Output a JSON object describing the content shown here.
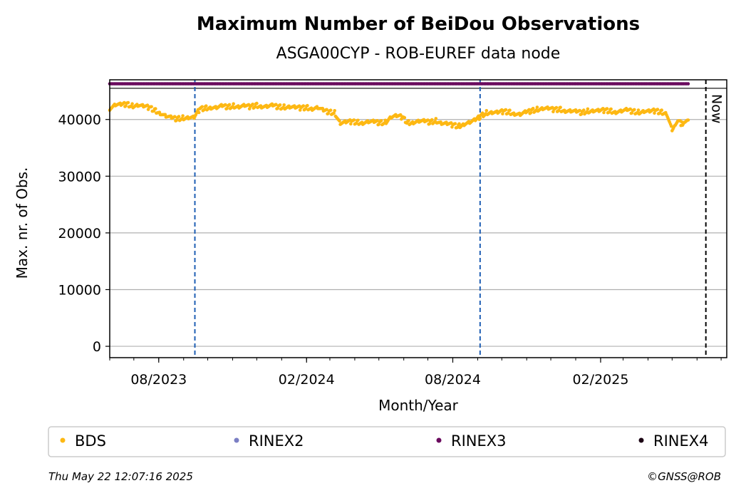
{
  "chart_data": {
    "type": "scatter",
    "title": "Maximum Number of BeiDou Observations",
    "subtitle": "ASGA00CYP - ROB-EUREF data node",
    "xlabel": "Month/Year",
    "ylabel": "Max. nr. of Obs.",
    "x_range": [
      "2023-06-01",
      "2025-07-08"
    ],
    "ylim": [
      -2000,
      47000
    ],
    "x_ticks": [
      {
        "date": "2023-08-01",
        "label": "08/2023"
      },
      {
        "date": "2024-02-01",
        "label": "02/2024"
      },
      {
        "date": "2024-08-01",
        "label": "08/2024"
      },
      {
        "date": "2025-02-01",
        "label": "02/2025"
      }
    ],
    "y_ticks": [
      {
        "value": 0,
        "label": "0"
      },
      {
        "value": 10000,
        "label": "10000"
      },
      {
        "value": 20000,
        "label": "20000"
      },
      {
        "value": 30000,
        "label": "30000"
      },
      {
        "value": 40000,
        "label": "40000"
      }
    ],
    "grid": "horizontal",
    "vlines": [
      {
        "date": "2023-09-15",
        "color": "#1f5fb4",
        "style": "dashed"
      },
      {
        "date": "2024-09-04",
        "color": "#1f5fb4",
        "style": "dashed"
      },
      {
        "date": "2025-06-12",
        "color": "#000000",
        "style": "dashed",
        "label": "Now"
      }
    ],
    "band_separator": 45500,
    "series": [
      {
        "name": "BDS",
        "color": "#fdb813",
        "points": [
          [
            "2023-06-01",
            42000
          ],
          [
            "2023-06-08",
            42600
          ],
          [
            "2023-06-15",
            42500
          ],
          [
            "2023-06-22",
            42700
          ],
          [
            "2023-06-29",
            42400
          ],
          [
            "2023-07-06",
            42600
          ],
          [
            "2023-07-13",
            42300
          ],
          [
            "2023-07-20",
            42100
          ],
          [
            "2023-07-27",
            41600
          ],
          [
            "2023-08-03",
            41200
          ],
          [
            "2023-08-10",
            40600
          ],
          [
            "2023-08-17",
            40200
          ],
          [
            "2023-08-24",
            40100
          ],
          [
            "2023-08-31",
            40300
          ],
          [
            "2023-09-07",
            40400
          ],
          [
            "2023-09-14",
            40300
          ],
          [
            "2023-09-21",
            41800
          ],
          [
            "2023-09-28",
            42000
          ],
          [
            "2023-10-05",
            42200
          ],
          [
            "2023-10-12",
            42100
          ],
          [
            "2023-10-19",
            42300
          ],
          [
            "2023-10-26",
            42200
          ],
          [
            "2023-11-02",
            42400
          ],
          [
            "2023-11-09",
            42300
          ],
          [
            "2023-11-16",
            42400
          ],
          [
            "2023-11-23",
            42200
          ],
          [
            "2023-11-30",
            42500
          ],
          [
            "2023-12-07",
            42400
          ],
          [
            "2023-12-14",
            42300
          ],
          [
            "2023-12-21",
            42400
          ],
          [
            "2023-12-28",
            42200
          ],
          [
            "2024-01-04",
            42200
          ],
          [
            "2024-01-11",
            42300
          ],
          [
            "2024-01-18",
            42100
          ],
          [
            "2024-01-25",
            42000
          ],
          [
            "2024-02-01",
            42100
          ],
          [
            "2024-02-08",
            42000
          ],
          [
            "2024-02-15",
            42100
          ],
          [
            "2024-02-22",
            41500
          ],
          [
            "2024-02-29",
            41300
          ],
          [
            "2024-03-07",
            41200
          ],
          [
            "2024-03-14",
            39400
          ],
          [
            "2024-03-21",
            39500
          ],
          [
            "2024-03-28",
            39600
          ],
          [
            "2024-04-04",
            39500
          ],
          [
            "2024-04-11",
            39500
          ],
          [
            "2024-04-18",
            39600
          ],
          [
            "2024-04-25",
            39500
          ],
          [
            "2024-05-02",
            39400
          ],
          [
            "2024-05-09",
            39500
          ],
          [
            "2024-05-16",
            40500
          ],
          [
            "2024-05-23",
            40600
          ],
          [
            "2024-05-30",
            40400
          ],
          [
            "2024-06-06",
            39400
          ],
          [
            "2024-06-13",
            39600
          ],
          [
            "2024-06-20",
            39700
          ],
          [
            "2024-06-27",
            39600
          ],
          [
            "2024-07-04",
            39500
          ],
          [
            "2024-07-11",
            39800
          ],
          [
            "2024-07-18",
            39400
          ],
          [
            "2024-07-25",
            39200
          ],
          [
            "2024-08-01",
            39000
          ],
          [
            "2024-08-08",
            38800
          ],
          [
            "2024-08-15",
            39300
          ],
          [
            "2024-08-22",
            39500
          ],
          [
            "2024-08-29",
            39800
          ],
          [
            "2024-09-05",
            40600
          ],
          [
            "2024-09-12",
            41200
          ],
          [
            "2024-09-19",
            41300
          ],
          [
            "2024-09-26",
            41200
          ],
          [
            "2024-10-03",
            41400
          ],
          [
            "2024-10-10",
            41300
          ],
          [
            "2024-10-17",
            41100
          ],
          [
            "2024-10-24",
            40900
          ],
          [
            "2024-10-31",
            41200
          ],
          [
            "2024-11-07",
            41500
          ],
          [
            "2024-11-14",
            41800
          ],
          [
            "2024-11-21",
            42000
          ],
          [
            "2024-11-28",
            41900
          ],
          [
            "2024-12-05",
            41700
          ],
          [
            "2024-12-12",
            41800
          ],
          [
            "2024-12-19",
            41600
          ],
          [
            "2024-12-26",
            41500
          ],
          [
            "2025-01-02",
            41300
          ],
          [
            "2025-01-09",
            41200
          ],
          [
            "2025-01-16",
            41500
          ],
          [
            "2025-01-23",
            41600
          ],
          [
            "2025-01-30",
            41500
          ],
          [
            "2025-02-06",
            41600
          ],
          [
            "2025-02-13",
            41500
          ],
          [
            "2025-02-20",
            41400
          ],
          [
            "2025-02-27",
            41500
          ],
          [
            "2025-03-06",
            41600
          ],
          [
            "2025-03-13",
            41400
          ],
          [
            "2025-03-20",
            41300
          ],
          [
            "2025-03-27",
            41500
          ],
          [
            "2025-04-03",
            41400
          ],
          [
            "2025-04-10",
            41500
          ],
          [
            "2025-04-17",
            41300
          ],
          [
            "2025-04-24",
            41200
          ],
          [
            "2025-05-01",
            38200
          ],
          [
            "2025-05-05",
            39000
          ],
          [
            "2025-05-09",
            39600
          ],
          [
            "2025-05-13",
            39200
          ],
          [
            "2025-05-17",
            39800
          ],
          [
            "2025-05-21",
            39900
          ]
        ]
      },
      {
        "name": "RINEX2",
        "color": "#7b7fc4",
        "points": []
      },
      {
        "name": "RINEX3",
        "color": "#6a0a5e",
        "constant": 46300,
        "from": "2023-06-01",
        "to": "2025-05-21"
      },
      {
        "name": "RINEX4",
        "color": "#1c0414",
        "points": []
      }
    ],
    "legend": {
      "placement": "bottom",
      "columns": 4
    }
  },
  "footer": {
    "timestamp": "Thu May 22 12:07:16 2025",
    "credit": "©GNSS@ROB"
  }
}
